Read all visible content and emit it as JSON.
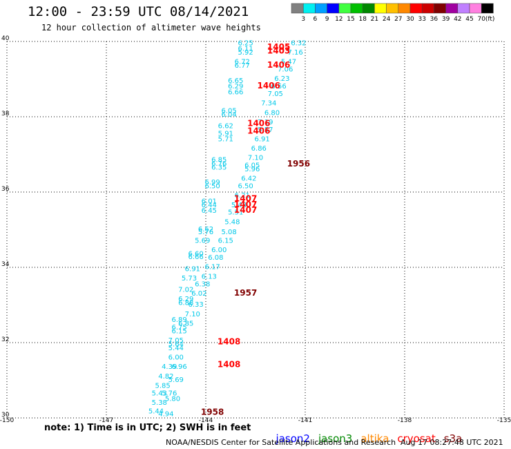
{
  "header": {
    "title": "12:00 - 23:59 UTC 08/14/2021",
    "subtitle": "12 hour collection of altimeter wave heights"
  },
  "legend": {
    "labels": [
      "3",
      "6",
      "9",
      "12",
      "15",
      "18",
      "21",
      "24",
      "27",
      "30",
      "33",
      "36",
      "39",
      "42",
      "45",
      "70"
    ],
    "unit": "(ft)",
    "colors": [
      "#808080",
      "#00f0f0",
      "#00a0ff",
      "#0000ff",
      "#40ff40",
      "#00c000",
      "#008800",
      "#ffff00",
      "#ffc000",
      "#ff8800",
      "#ff0000",
      "#cc0000",
      "#800000",
      "#a000a0",
      "#c080ff",
      "#ff80e0",
      "#000000"
    ]
  },
  "footer": {
    "note": "note: 1) Time is in UTC; 2) SWH is in feet",
    "missions": [
      {
        "name": "jason2",
        "color": "#0000ff"
      },
      {
        "name": "jason3",
        "color": "#008800"
      },
      {
        "name": "altika",
        "color": "#ff8800"
      },
      {
        "name": "cryosat",
        "color": "#ff0000"
      },
      {
        "name": "s3a",
        "color": "#800000"
      }
    ],
    "credit": "NOAA/NESDIS Center for Satellite Applications and Research",
    "timestamp": "Aug 17 08:27:48 UTC 2021"
  },
  "chart_data": {
    "type": "scatter",
    "xlim": [
      -150,
      -135
    ],
    "ylim": [
      30,
      40
    ],
    "xticks": [
      "-150",
      "-147",
      "-144",
      "-141",
      "-138",
      "-135"
    ],
    "yticks": [
      "30",
      "32",
      "34",
      "36",
      "38",
      "40"
    ],
    "grid": true,
    "swh_color": "#00c8e8",
    "swh_points": [
      {
        "x": -142.8,
        "y": 39.9,
        "v": "6.25"
      },
      {
        "x": -141.2,
        "y": 39.9,
        "v": "6.32"
      },
      {
        "x": -142.8,
        "y": 39.75,
        "v": "6.11"
      },
      {
        "x": -142.8,
        "y": 39.65,
        "v": "5.92"
      },
      {
        "x": -141.3,
        "y": 39.65,
        "v": "7.16"
      },
      {
        "x": -141.5,
        "y": 39.4,
        "v": "5.47"
      },
      {
        "x": -142.9,
        "y": 39.4,
        "v": "6.72"
      },
      {
        "x": -142.9,
        "y": 39.3,
        "v": "6.77"
      },
      {
        "x": -141.6,
        "y": 39.2,
        "v": "7.06"
      },
      {
        "x": -141.7,
        "y": 38.95,
        "v": "6.23"
      },
      {
        "x": -143.1,
        "y": 38.9,
        "v": "6.65"
      },
      {
        "x": -143.1,
        "y": 38.75,
        "v": "6.29"
      },
      {
        "x": -141.8,
        "y": 38.75,
        "v": "6.56"
      },
      {
        "x": -143.1,
        "y": 38.6,
        "v": "6.66"
      },
      {
        "x": -141.9,
        "y": 38.55,
        "v": "7.05"
      },
      {
        "x": -142.1,
        "y": 38.3,
        "v": "7.34"
      },
      {
        "x": -143.3,
        "y": 38.1,
        "v": "6.05"
      },
      {
        "x": -142.0,
        "y": 38.05,
        "v": "6.80"
      },
      {
        "x": -143.3,
        "y": 38.0,
        "v": "6.04"
      },
      {
        "x": -142.2,
        "y": 37.8,
        "v": "7.19"
      },
      {
        "x": -143.4,
        "y": 37.7,
        "v": "6.62"
      },
      {
        "x": -142.2,
        "y": 37.6,
        "v": "5.57"
      },
      {
        "x": -143.4,
        "y": 37.5,
        "v": "5.91"
      },
      {
        "x": -142.3,
        "y": 37.35,
        "v": "6.91"
      },
      {
        "x": -143.4,
        "y": 37.35,
        "v": "5.71"
      },
      {
        "x": -142.4,
        "y": 37.1,
        "v": "6.86"
      },
      {
        "x": -142.5,
        "y": 36.85,
        "v": "7.10"
      },
      {
        "x": -143.6,
        "y": 36.8,
        "v": "6.85"
      },
      {
        "x": -143.6,
        "y": 36.7,
        "v": "6.76"
      },
      {
        "x": -142.6,
        "y": 36.65,
        "v": "6.05"
      },
      {
        "x": -143.6,
        "y": 36.6,
        "v": "6.35"
      },
      {
        "x": -142.6,
        "y": 36.55,
        "v": "5.96"
      },
      {
        "x": -142.7,
        "y": 36.3,
        "v": "6.42"
      },
      {
        "x": -143.8,
        "y": 36.2,
        "v": "6.99"
      },
      {
        "x": -143.8,
        "y": 36.1,
        "v": "6.50"
      },
      {
        "x": -142.8,
        "y": 36.1,
        "v": "6.50"
      },
      {
        "x": -142.9,
        "y": 35.85,
        "v": "6.21"
      },
      {
        "x": -143.9,
        "y": 35.7,
        "v": "6.01"
      },
      {
        "x": -143.9,
        "y": 35.6,
        "v": "6.44"
      },
      {
        "x": -143.0,
        "y": 35.6,
        "v": "5.48"
      },
      {
        "x": -143.9,
        "y": 35.45,
        "v": "6.45"
      },
      {
        "x": -143.1,
        "y": 35.4,
        "v": "5.51"
      },
      {
        "x": -143.2,
        "y": 35.15,
        "v": "5.48"
      },
      {
        "x": -144.0,
        "y": 34.95,
        "v": "6.62"
      },
      {
        "x": -144.0,
        "y": 34.88,
        "v": "5.76"
      },
      {
        "x": -143.3,
        "y": 34.88,
        "v": "5.08"
      },
      {
        "x": -144.1,
        "y": 34.65,
        "v": "5.69"
      },
      {
        "x": -143.4,
        "y": 34.65,
        "v": "6.15"
      },
      {
        "x": -143.6,
        "y": 34.4,
        "v": "6.00"
      },
      {
        "x": -144.3,
        "y": 34.3,
        "v": "6.60"
      },
      {
        "x": -144.3,
        "y": 34.22,
        "v": "6.66"
      },
      {
        "x": -143.7,
        "y": 34.2,
        "v": "6.08"
      },
      {
        "x": -143.8,
        "y": 33.95,
        "v": "6.17"
      },
      {
        "x": -144.4,
        "y": 33.9,
        "v": "6.91"
      },
      {
        "x": -143.9,
        "y": 33.7,
        "v": "6.13"
      },
      {
        "x": -144.5,
        "y": 33.65,
        "v": "5.73"
      },
      {
        "x": -144.1,
        "y": 33.5,
        "v": "6.38"
      },
      {
        "x": -144.6,
        "y": 33.35,
        "v": "7.02"
      },
      {
        "x": -144.2,
        "y": 33.25,
        "v": "6.02"
      },
      {
        "x": -144.6,
        "y": 33.1,
        "v": "6.29"
      },
      {
        "x": -144.6,
        "y": 33.0,
        "v": "6.88"
      },
      {
        "x": -144.3,
        "y": 32.95,
        "v": "6.33"
      },
      {
        "x": -144.4,
        "y": 32.7,
        "v": "7.10"
      },
      {
        "x": -144.8,
        "y": 32.55,
        "v": "6.89"
      },
      {
        "x": -144.6,
        "y": 32.45,
        "v": "6.85"
      },
      {
        "x": -144.8,
        "y": 32.35,
        "v": "6.75"
      },
      {
        "x": -144.8,
        "y": 32.25,
        "v": "6.15"
      },
      {
        "x": -144.9,
        "y": 32.0,
        "v": "7.05"
      },
      {
        "x": -144.9,
        "y": 31.9,
        "v": "5.64"
      },
      {
        "x": -144.9,
        "y": 31.8,
        "v": "5.44"
      },
      {
        "x": -144.9,
        "y": 31.55,
        "v": "6.00"
      },
      {
        "x": -145.1,
        "y": 31.3,
        "v": "4.39"
      },
      {
        "x": -144.8,
        "y": 31.3,
        "v": "6.96"
      },
      {
        "x": -145.2,
        "y": 31.05,
        "v": "4.82"
      },
      {
        "x": -144.9,
        "y": 30.95,
        "v": "5.69"
      },
      {
        "x": -145.3,
        "y": 30.8,
        "v": "5.85"
      },
      {
        "x": -145.4,
        "y": 30.6,
        "v": "5.43"
      },
      {
        "x": -145.1,
        "y": 30.6,
        "v": "5.76"
      },
      {
        "x": -145.4,
        "y": 30.35,
        "v": "5.38"
      },
      {
        "x": -145.0,
        "y": 30.45,
        "v": "5.80"
      },
      {
        "x": -145.5,
        "y": 30.12,
        "v": "5.44"
      },
      {
        "x": -145.2,
        "y": 30.05,
        "v": "4.94"
      }
    ],
    "pass_labels": [
      {
        "x": -141.8,
        "y": 39.78,
        "v": "1405",
        "color": "#ff0000"
      },
      {
        "x": -141.8,
        "y": 39.68,
        "v": "1403",
        "color": "#ff0000"
      },
      {
        "x": -141.8,
        "y": 39.3,
        "v": "1406",
        "color": "#ff0000"
      },
      {
        "x": -142.1,
        "y": 38.75,
        "v": "1406",
        "color": "#ff0000"
      },
      {
        "x": -142.4,
        "y": 37.75,
        "v": "1406",
        "color": "#ff0000"
      },
      {
        "x": -142.4,
        "y": 37.55,
        "v": "1406",
        "color": "#ff0000"
      },
      {
        "x": -141.2,
        "y": 36.68,
        "v": "1956",
        "color": "#800000"
      },
      {
        "x": -142.8,
        "y": 35.75,
        "v": "1407",
        "color": "#ff0000"
      },
      {
        "x": -142.8,
        "y": 35.6,
        "v": "1407",
        "color": "#ff0000"
      },
      {
        "x": -142.8,
        "y": 35.45,
        "v": "1407",
        "color": "#ff0000"
      },
      {
        "x": -142.8,
        "y": 33.25,
        "v": "1957",
        "color": "#800000"
      },
      {
        "x": -143.3,
        "y": 31.95,
        "v": "1408",
        "color": "#ff0000"
      },
      {
        "x": -143.3,
        "y": 31.35,
        "v": "1408",
        "color": "#ff0000"
      },
      {
        "x": -143.8,
        "y": 30.08,
        "v": "1958",
        "color": "#800000"
      }
    ]
  }
}
